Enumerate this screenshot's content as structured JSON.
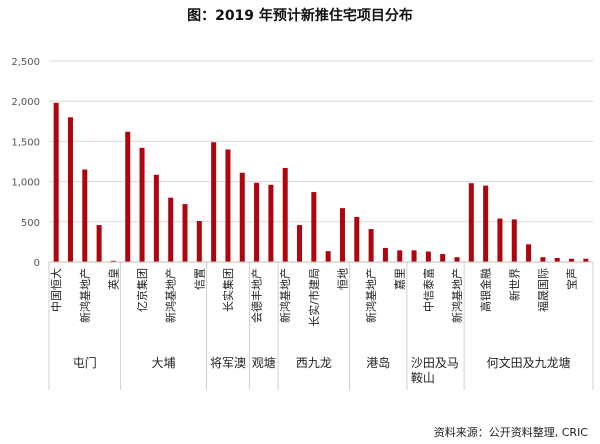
{
  "chart_data": {
    "type": "bar",
    "title": "图：2019 年预计新推住宅项目分布",
    "source": "资料来源：公开资料整理, CRIC",
    "ylim": [
      0,
      2500
    ],
    "yticks": [
      0,
      500,
      1000,
      1500,
      2000,
      2500
    ],
    "ytick_labels": [
      "0",
      "500",
      "1,000",
      "1,500",
      "2,000",
      "2,500"
    ],
    "grid": true,
    "bar_color": "#B0050F",
    "categories": [
      "中国恒大",
      "",
      "新鸿基地产",
      "",
      "英皇",
      "",
      "亿京集团",
      "",
      "新鸿基地产",
      "",
      "信置",
      "",
      "长实集团",
      "",
      "会德丰地产",
      "",
      "新鸿基地产",
      "",
      "长实/市建局",
      "",
      "恒地",
      "",
      "新鸿基地产",
      "",
      "嘉里",
      "",
      "中信泰富",
      "",
      "新鸿基地产",
      "",
      "高银金融",
      "",
      "新世界",
      "",
      "福晟国际",
      "",
      "宝声",
      ""
    ],
    "values": [
      1980,
      1800,
      1150,
      460,
      15,
      1620,
      1420,
      1085,
      800,
      720,
      510,
      1490,
      1400,
      1110,
      985,
      960,
      1170,
      460,
      870,
      135,
      670,
      560,
      410,
      175,
      145,
      145,
      130,
      100,
      60,
      980,
      950,
      540,
      530,
      220,
      60,
      50,
      40,
      40
    ],
    "groups": [
      {
        "name": "屯门",
        "count": 5
      },
      {
        "name": "大埔",
        "count": 6
      },
      {
        "name": "将军澳",
        "count": 3
      },
      {
        "name": "观塘",
        "count": 2
      },
      {
        "name": "西九龙",
        "count": 5
      },
      {
        "name": "港岛",
        "count": 4
      },
      {
        "name": "沙田及马\n鞍山",
        "count": 4
      },
      {
        "name": "何文田及九龙塘",
        "count": 9
      }
    ]
  }
}
